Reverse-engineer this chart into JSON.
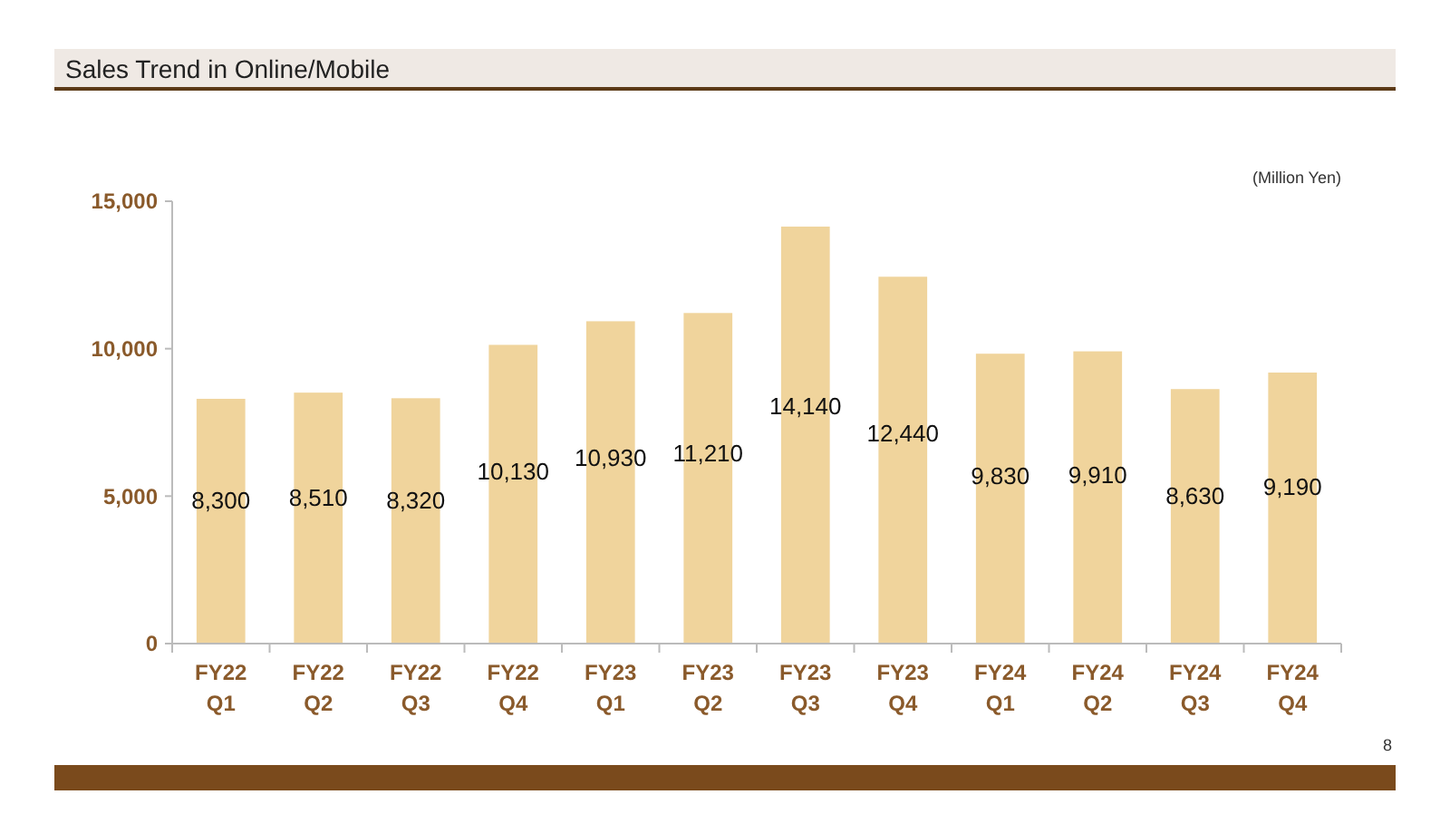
{
  "chart_data": {
    "type": "bar",
    "title": "Sales Trend in Online/Mobile",
    "categories": [
      "FY22 Q1",
      "FY22 Q2",
      "FY22 Q3",
      "FY22 Q4",
      "FY23 Q1",
      "FY23 Q2",
      "FY23 Q3",
      "FY23 Q4",
      "FY24 Q1",
      "FY24 Q2",
      "FY24 Q3",
      "FY24 Q4"
    ],
    "values": [
      8300,
      8510,
      8320,
      10130,
      10930,
      11210,
      14140,
      12440,
      9830,
      9910,
      8630,
      9190
    ],
    "color": "#f0d49c",
    "ylim": [
      0,
      15000
    ],
    "yticks": [
      {
        "value": 0,
        "label": "0"
      },
      {
        "value": 5000,
        "label": "5,000"
      },
      {
        "value": 10000,
        "label": "10,000"
      },
      {
        "value": 15000,
        "label": "15,000"
      }
    ],
    "value_labels": [
      "8,300",
      "8,510",
      "8,320",
      "10,130",
      "10,930",
      "11,210",
      "14,140",
      "12,440",
      "9,830",
      "9,910",
      "8,630",
      "9,190"
    ],
    "ylabel": "(Million Yen)",
    "grid": false,
    "annotations": [
      "8"
    ]
  }
}
